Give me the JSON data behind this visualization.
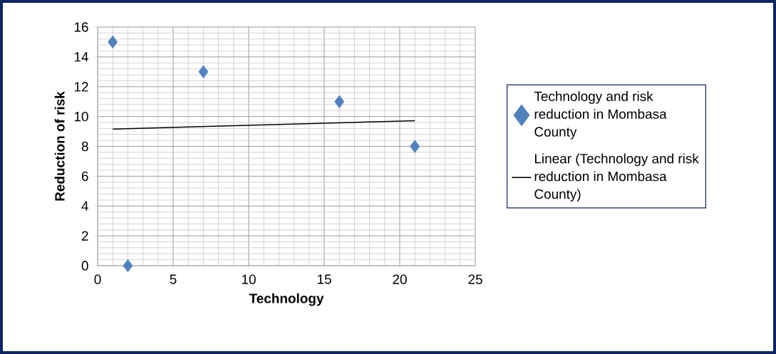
{
  "chart_data": {
    "type": "scatter",
    "xlabel": "Technology",
    "ylabel": "Reduction of risk",
    "x": [
      1,
      2,
      7,
      16,
      21
    ],
    "series": [
      {
        "name": "Technology and risk reduction in Mombasa County",
        "color": "#4f81bd",
        "values": [
          15,
          0,
          13,
          11,
          8
        ],
        "marker": "diamond"
      },
      {
        "name": "Linear (Technology and risk reduction in Mombasa County)",
        "type": "line",
        "color": "#000000",
        "x": [
          1,
          21
        ],
        "values": [
          9.16,
          9.72
        ]
      }
    ],
    "xlim": [
      0,
      25
    ],
    "xticks": [
      0,
      5,
      10,
      15,
      20,
      25
    ],
    "ylim": [
      0,
      16
    ],
    "yticks": [
      0,
      2,
      4,
      6,
      8,
      10,
      12,
      14,
      16
    ],
    "grid": true,
    "legend": "right"
  }
}
